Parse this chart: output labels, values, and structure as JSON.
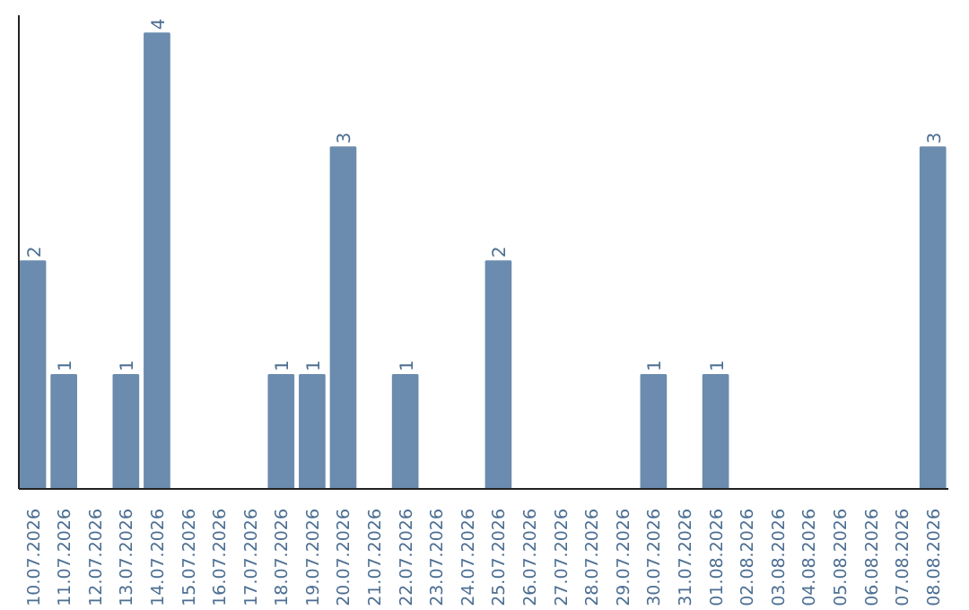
{
  "chart_data": {
    "type": "bar",
    "categories": [
      "10.07.2026",
      "11.07.2026",
      "12.07.2026",
      "13.07.2026",
      "14.07.2026",
      "15.07.2026",
      "16.07.2026",
      "17.07.2026",
      "18.07.2026",
      "19.07.2026",
      "20.07.2026",
      "21.07.2026",
      "22.07.2026",
      "23.07.2026",
      "24.07.2026",
      "25.07.2026",
      "26.07.2026",
      "27.07.2026",
      "28.07.2026",
      "29.07.2026",
      "30.07.2026",
      "31.07.2026",
      "01.08.2026",
      "02.08.2026",
      "03.08.2026",
      "04.08.2026",
      "05.08.2026",
      "06.08.2026",
      "07.08.2026",
      "08.08.2026"
    ],
    "values": [
      2,
      1,
      0,
      1,
      4,
      0,
      0,
      0,
      1,
      1,
      3,
      0,
      1,
      0,
      0,
      2,
      0,
      0,
      0,
      0,
      1,
      0,
      1,
      0,
      0,
      0,
      0,
      0,
      0,
      3
    ],
    "value_labels": [
      "2",
      "1",
      null,
      "1",
      "4",
      null,
      null,
      null,
      "1",
      "1",
      "3",
      null,
      "1",
      null,
      null,
      "2",
      null,
      null,
      null,
      null,
      "1",
      null,
      "1",
      null,
      null,
      null,
      null,
      null,
      null,
      "3"
    ],
    "color": "#6b8cae",
    "grid": false,
    "tick_labels": "x"
  }
}
